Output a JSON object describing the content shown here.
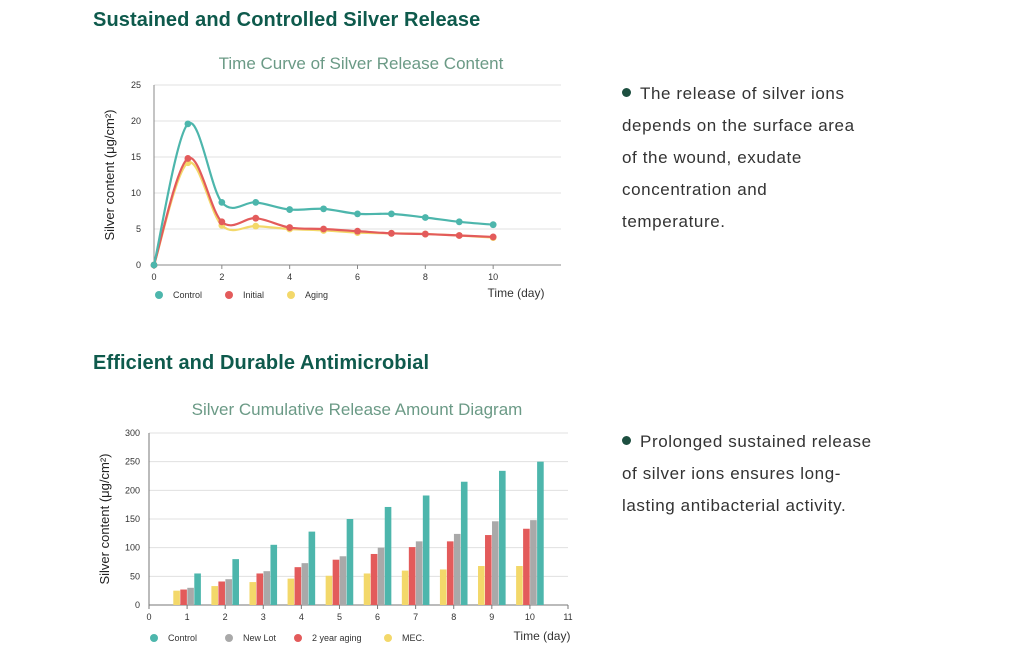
{
  "section1": {
    "title": "Sustained and Controlled Silver Release",
    "bullet": "The release of silver ions depends on the surface area of the wound, exudate concentration and temperature."
  },
  "section2": {
    "title": "Efficient and Durable Antimicrobial",
    "bullet": "Prolonged sustained release of silver ions ensures long-lasting antibacterial activity."
  },
  "colors": {
    "teal": "#4db6ac",
    "red": "#e35b5b",
    "yellow": "#f3d86a",
    "gray": "#a9a9a9",
    "title_green": "#0e5a4c",
    "chart_title": "#6b9a86"
  },
  "chart_data": [
    {
      "type": "line",
      "title": "Time Curve of Silver Release Content",
      "xlabel": "Time (day)",
      "ylabel": "Silver content (μg/cm²)",
      "xlim": [
        0,
        12
      ],
      "ylim": [
        0,
        25
      ],
      "xticks": [
        0,
        2,
        4,
        6,
        8,
        10
      ],
      "xtick_labels": [
        "0",
        "2",
        "4",
        "6",
        "8",
        "10"
      ],
      "yticks": [
        0,
        5,
        10,
        15,
        20,
        25
      ],
      "ytick_labels": [
        "0",
        "5",
        "10",
        "15",
        "20",
        "25"
      ],
      "grid": true,
      "legend_position": "bottom-left",
      "x": [
        0,
        1,
        2,
        3,
        4,
        5,
        6,
        7,
        8,
        9,
        10
      ],
      "series": [
        {
          "name": "Control",
          "color": "#4db6ac",
          "values": [
            0,
            19.6,
            8.7,
            8.7,
            7.7,
            7.8,
            7.1,
            7.1,
            6.6,
            6.0,
            5.6
          ]
        },
        {
          "name": "Initial",
          "color": "#e35b5b",
          "values": [
            0,
            14.8,
            6.0,
            6.5,
            5.2,
            5.0,
            4.7,
            4.4,
            4.3,
            4.1,
            3.9
          ]
        },
        {
          "name": "Aging",
          "color": "#f3d86a",
          "values": [
            0,
            14.2,
            5.5,
            5.4,
            5.0,
            4.8,
            4.5,
            4.4,
            4.3,
            4.1,
            3.8
          ]
        }
      ]
    },
    {
      "type": "bar",
      "title": "Silver Cumulative Release Amount Diagram",
      "xlabel": "Time (day)",
      "ylabel": "Silver content (μg/cm²)",
      "xlim": [
        0,
        11
      ],
      "ylim": [
        0,
        300
      ],
      "categories": [
        "1",
        "2",
        "3",
        "4",
        "5",
        "6",
        "7",
        "8",
        "9",
        "10"
      ],
      "xticks": [
        0,
        1,
        2,
        3,
        4,
        5,
        6,
        7,
        8,
        9,
        10,
        11
      ],
      "xtick_labels": [
        "0",
        "1",
        "2",
        "3",
        "4",
        "5",
        "6",
        "7",
        "8",
        "9",
        "10",
        "11"
      ],
      "yticks": [
        0,
        50,
        100,
        150,
        200,
        250,
        300
      ],
      "ytick_labels": [
        "0",
        "50",
        "100",
        "150",
        "200",
        "250",
        "300"
      ],
      "grid": true,
      "legend_position": "bottom-left",
      "series": [
        {
          "name": "MEC.",
          "color": "#f3d86a",
          "values": [
            25,
            33,
            40,
            46,
            51,
            55,
            60,
            62,
            68,
            68
          ]
        },
        {
          "name": "2 year aging",
          "color": "#e35b5b",
          "values": [
            27,
            41,
            55,
            66,
            79,
            89,
            101,
            111,
            122,
            133
          ]
        },
        {
          "name": "New Lot",
          "color": "#a9a9a9",
          "values": [
            30,
            45,
            59,
            73,
            85,
            100,
            111,
            124,
            146,
            148
          ]
        },
        {
          "name": "Control",
          "color": "#4db6ac",
          "values": [
            55,
            80,
            105,
            128,
            150,
            171,
            191,
            215,
            234,
            250
          ]
        }
      ],
      "legend_order": [
        "Control",
        "New Lot",
        "2 year aging",
        "MEC."
      ]
    }
  ]
}
